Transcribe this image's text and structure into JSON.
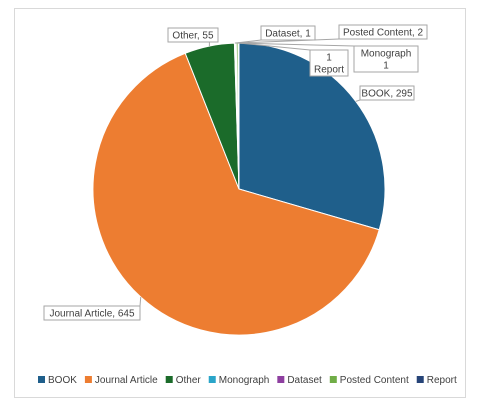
{
  "chart_data": {
    "type": "pie",
    "title": "",
    "categories": [
      "BOOK",
      "Journal Article",
      "Other",
      "Monograph",
      "Dataset",
      "Posted Content",
      "Report"
    ],
    "values": [
      295,
      645,
      55,
      1,
      1,
      2,
      1
    ],
    "colors": [
      "#1f5f8b",
      "#ed7d31",
      "#1b6b2a",
      "#2aa5c9",
      "#8e3fa0",
      "#70ad47",
      "#264478"
    ],
    "data_labels": [
      "BOOK, 295",
      "Journal Article, 645",
      "Other, 55",
      "Monograph\n1",
      "Dataset, 1",
      "Posted Content, 2",
      "1\nReport"
    ],
    "legend_position": "bottom",
    "start_angle_deg": 0,
    "direction": "clockwise"
  }
}
